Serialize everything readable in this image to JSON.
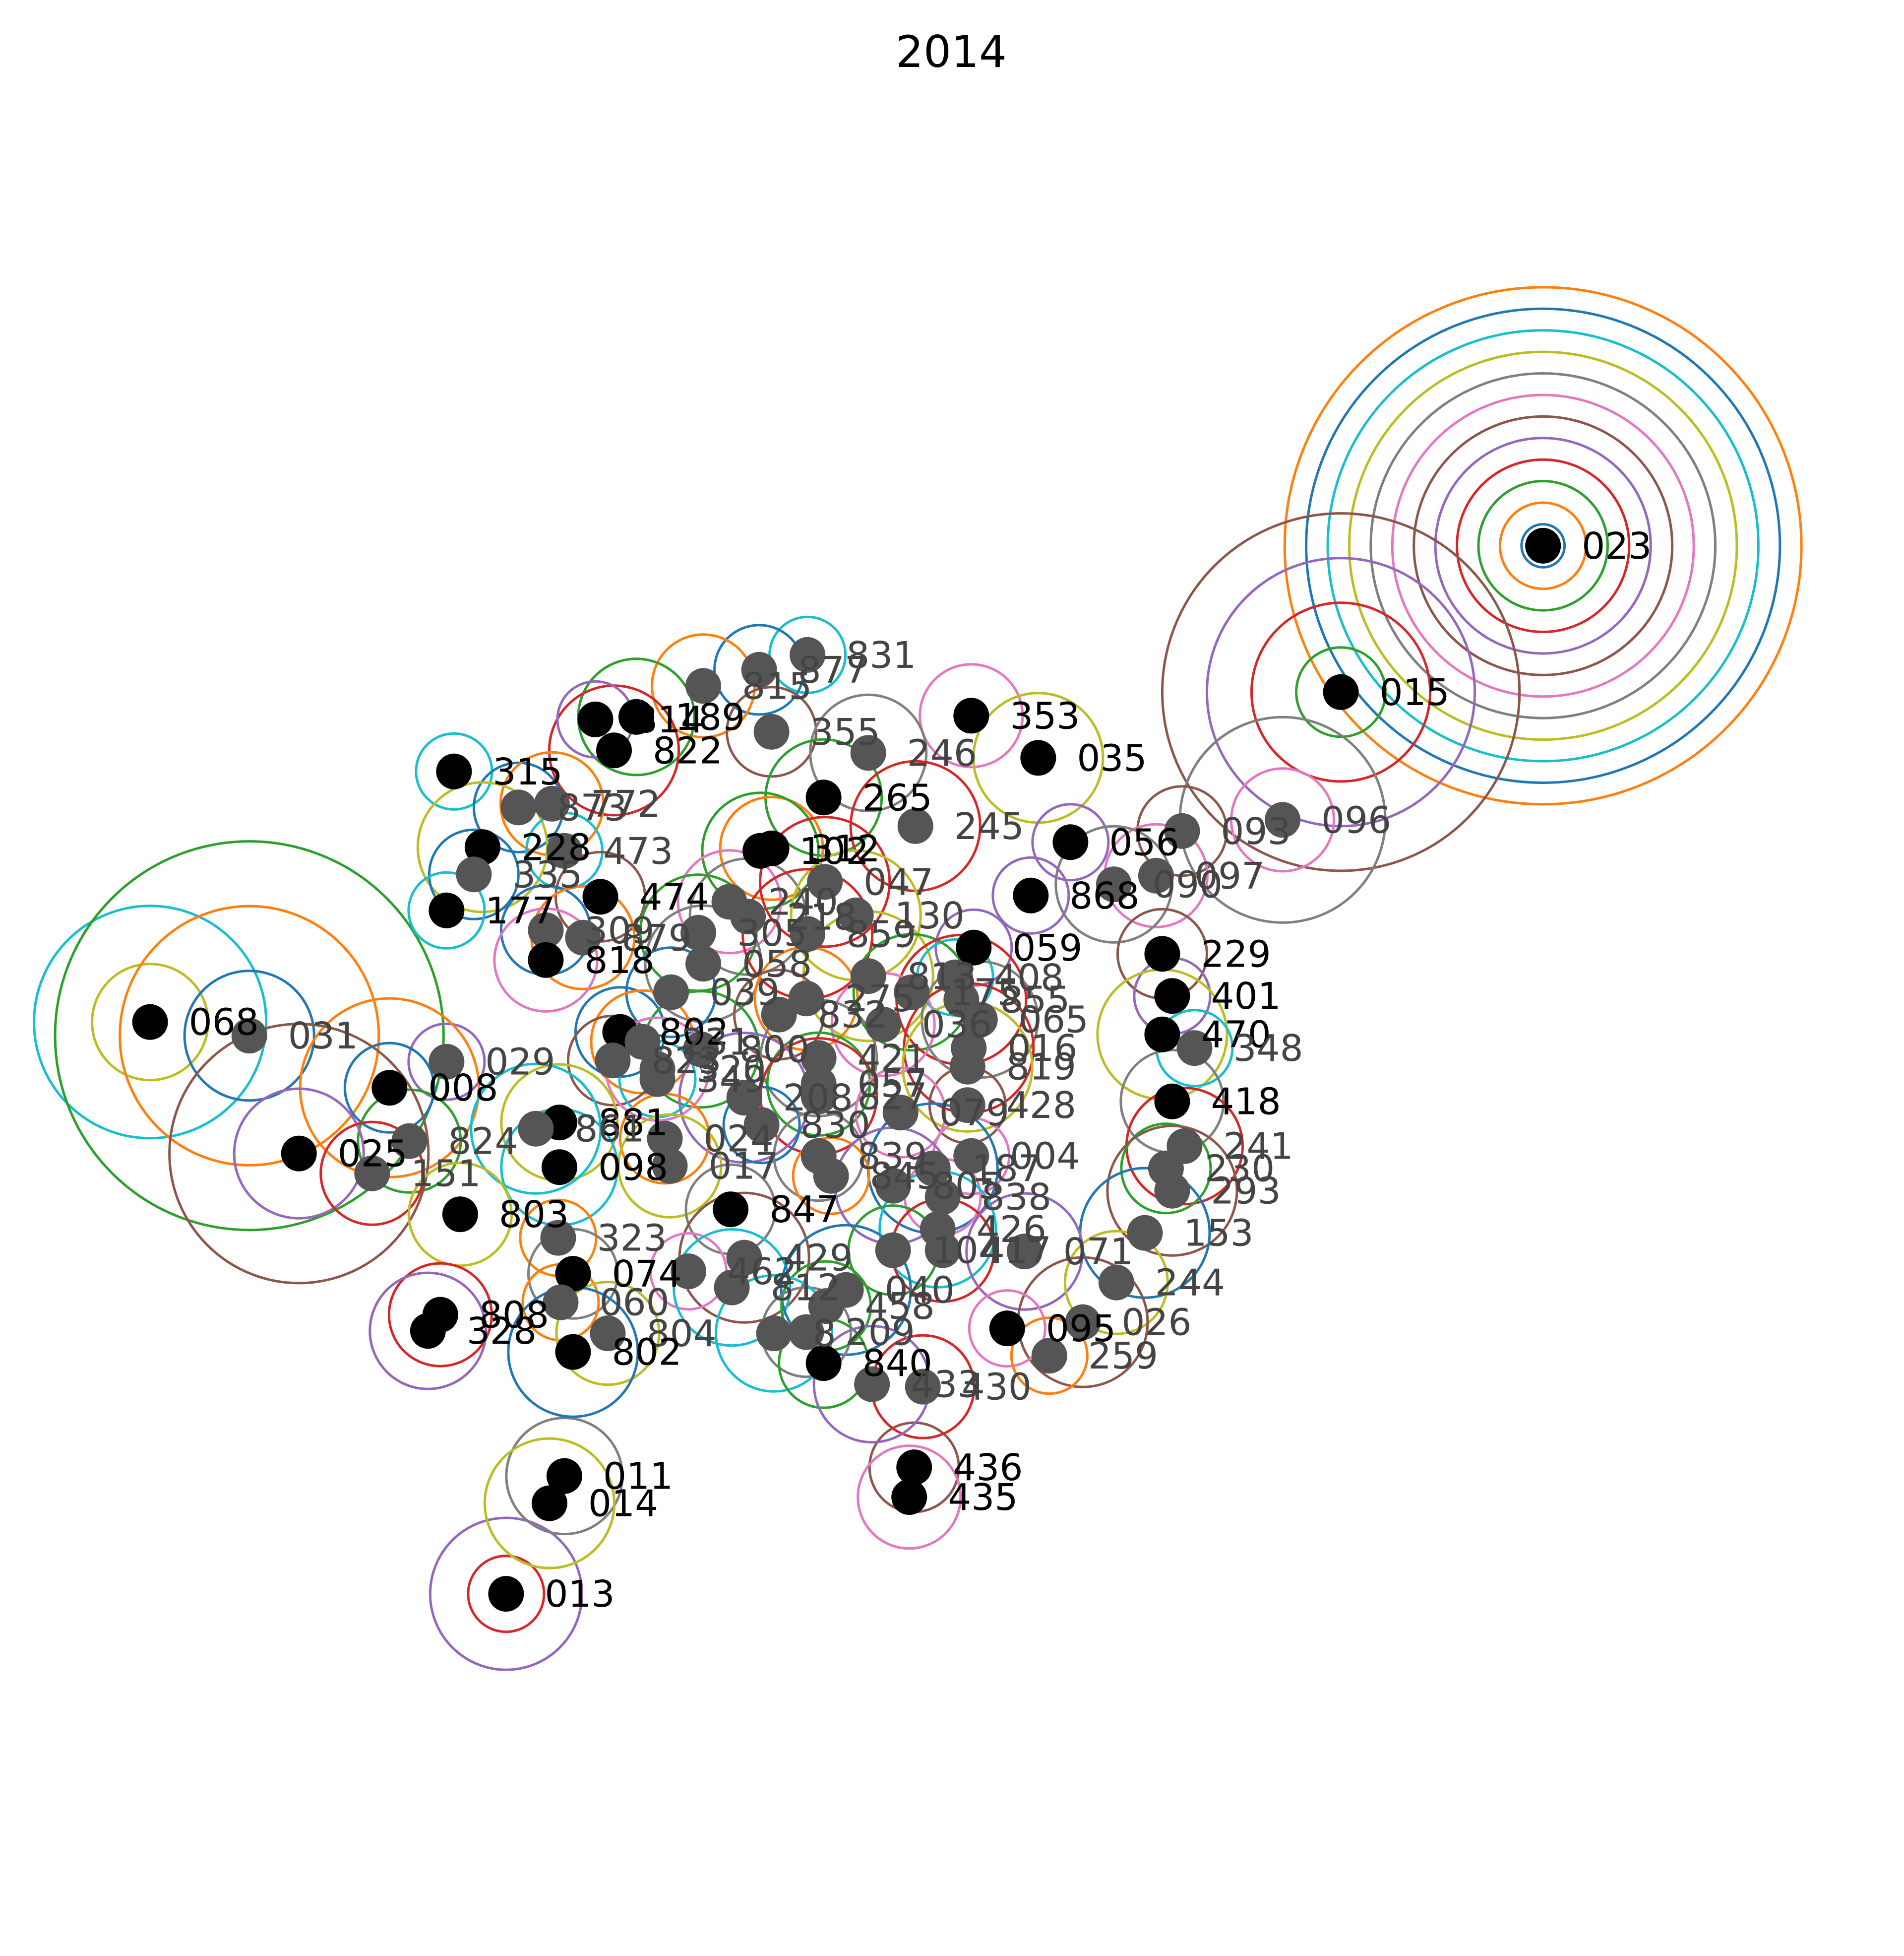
{
  "chart_data": {
    "type": "scatter",
    "title": "2014",
    "xlabel": "",
    "ylabel": "",
    "axes_visible": false,
    "grid": false,
    "legend": "none",
    "xlim": [
      0,
      1535
    ],
    "ylim": [
      1577,
      0
    ],
    "marker_colors": {
      "primary": "#000000",
      "secondary": "#555555"
    },
    "contour_colors": [
      "#1f77b4",
      "#ff7f0e",
      "#2ca02c",
      "#d62728",
      "#9467bd",
      "#8c564b",
      "#e377c2",
      "#7f7f7f",
      "#bcbd22",
      "#17becf"
    ],
    "points": [
      {
        "label": "023",
        "x": 1244,
        "y": 440,
        "shade": "primary",
        "rings": 12
      },
      {
        "label": "015",
        "x": 1081,
        "y": 558,
        "shade": "primary",
        "rings": 4
      },
      {
        "label": "096",
        "x": 1034,
        "y": 661,
        "shade": "secondary",
        "rings": 2
      },
      {
        "label": "068",
        "x": 121,
        "y": 824,
        "shade": "primary",
        "rings": 2
      },
      {
        "label": "031",
        "x": 201,
        "y": 835,
        "shade": "secondary",
        "rings": 3
      },
      {
        "label": "013",
        "x": 408,
        "y": 1285,
        "shade": "primary",
        "rings": 2
      },
      {
        "label": "436",
        "x": 737,
        "y": 1183,
        "shade": "primary",
        "rings": 1
      },
      {
        "label": "435",
        "x": 733,
        "y": 1207,
        "shade": "primary",
        "rings": 1
      },
      {
        "label": "011",
        "x": 455,
        "y": 1190,
        "shade": "primary",
        "rings": 1
      },
      {
        "label": "014",
        "x": 443,
        "y": 1212,
        "shade": "primary",
        "rings": 1
      },
      {
        "label": "831",
        "x": 651,
        "y": 528,
        "shade": "secondary",
        "rings": 1
      },
      {
        "label": "877",
        "x": 612,
        "y": 540,
        "shade": "secondary",
        "rings": 1
      },
      {
        "label": "815",
        "x": 567,
        "y": 553,
        "shade": "secondary",
        "rings": 1
      },
      {
        "label": "189",
        "x": 513,
        "y": 578,
        "shade": "primary",
        "rings": 1
      },
      {
        "label": "822",
        "x": 495,
        "y": 605,
        "shade": "primary",
        "rings": 1
      },
      {
        "label": "814",
        "x": 480,
        "y": 580,
        "shade": "primary",
        "rings": 1
      },
      {
        "label": "355",
        "x": 622,
        "y": 590,
        "shade": "secondary",
        "rings": 1
      },
      {
        "label": "353",
        "x": 783,
        "y": 577,
        "shade": "primary",
        "rings": 1
      },
      {
        "label": "246",
        "x": 700,
        "y": 607,
        "shade": "secondary",
        "rings": 1
      },
      {
        "label": "035",
        "x": 837,
        "y": 611,
        "shade": "primary",
        "rings": 1
      },
      {
        "label": "315",
        "x": 366,
        "y": 622,
        "shade": "primary",
        "rings": 1
      },
      {
        "label": "873",
        "x": 418,
        "y": 651,
        "shade": "secondary",
        "rings": 1
      },
      {
        "label": "772",
        "x": 445,
        "y": 648,
        "shade": "secondary",
        "rings": 1
      },
      {
        "label": "265",
        "x": 664,
        "y": 643,
        "shade": "primary",
        "rings": 1
      },
      {
        "label": "245",
        "x": 738,
        "y": 666,
        "shade": "secondary",
        "rings": 1
      },
      {
        "label": "056",
        "x": 863,
        "y": 679,
        "shade": "primary",
        "rings": 1
      },
      {
        "label": "093",
        "x": 953,
        "y": 670,
        "shade": "secondary",
        "rings": 1
      },
      {
        "label": "097",
        "x": 932,
        "y": 706,
        "shade": "secondary",
        "rings": 1
      },
      {
        "label": "090",
        "x": 898,
        "y": 713,
        "shade": "secondary",
        "rings": 1
      },
      {
        "label": "228",
        "x": 389,
        "y": 683,
        "shade": "primary",
        "rings": 1
      },
      {
        "label": "473",
        "x": 455,
        "y": 686,
        "shade": "secondary",
        "rings": 1
      },
      {
        "label": "335",
        "x": 382,
        "y": 705,
        "shade": "secondary",
        "rings": 1
      },
      {
        "label": "312",
        "x": 622,
        "y": 684,
        "shade": "primary",
        "rings": 1
      },
      {
        "label": "102",
        "x": 613,
        "y": 686,
        "shade": "primary",
        "rings": 1
      },
      {
        "label": "047",
        "x": 665,
        "y": 711,
        "shade": "secondary",
        "rings": 1
      },
      {
        "label": "868",
        "x": 831,
        "y": 722,
        "shade": "primary",
        "rings": 1
      },
      {
        "label": "474",
        "x": 484,
        "y": 723,
        "shade": "primary",
        "rings": 1
      },
      {
        "label": "240",
        "x": 588,
        "y": 727,
        "shade": "secondary",
        "rings": 1
      },
      {
        "label": "218",
        "x": 603,
        "y": 739,
        "shade": "secondary",
        "rings": 1
      },
      {
        "label": "130",
        "x": 690,
        "y": 738,
        "shade": "secondary",
        "rings": 1
      },
      {
        "label": "177",
        "x": 360,
        "y": 734,
        "shade": "primary",
        "rings": 1
      },
      {
        "label": "309",
        "x": 440,
        "y": 750,
        "shade": "secondary",
        "rings": 1
      },
      {
        "label": "879",
        "x": 470,
        "y": 756,
        "shade": "secondary",
        "rings": 1
      },
      {
        "label": "305",
        "x": 563,
        "y": 752,
        "shade": "secondary",
        "rings": 1
      },
      {
        "label": "859",
        "x": 651,
        "y": 753,
        "shade": "secondary",
        "rings": 1
      },
      {
        "label": "059",
        "x": 785,
        "y": 764,
        "shade": "primary",
        "rings": 1
      },
      {
        "label": "229",
        "x": 937,
        "y": 769,
        "shade": "primary",
        "rings": 1
      },
      {
        "label": "818",
        "x": 440,
        "y": 774,
        "shade": "primary",
        "rings": 1
      },
      {
        "label": "058",
        "x": 567,
        "y": 777,
        "shade": "secondary",
        "rings": 1
      },
      {
        "label": "813",
        "x": 700,
        "y": 787,
        "shade": "secondary",
        "rings": 1
      },
      {
        "label": "408",
        "x": 770,
        "y": 788,
        "shade": "secondary",
        "rings": 1
      },
      {
        "label": "039",
        "x": 541,
        "y": 800,
        "shade": "secondary",
        "rings": 1
      },
      {
        "label": "275",
        "x": 650,
        "y": 805,
        "shade": "secondary",
        "rings": 1
      },
      {
        "label": "175",
        "x": 735,
        "y": 800,
        "shade": "secondary",
        "rings": 1
      },
      {
        "label": "855",
        "x": 775,
        "y": 806,
        "shade": "secondary",
        "rings": 1
      },
      {
        "label": "401",
        "x": 945,
        "y": 803,
        "shade": "primary",
        "rings": 1
      },
      {
        "label": "832",
        "x": 628,
        "y": 818,
        "shade": "secondary",
        "rings": 1
      },
      {
        "label": "036",
        "x": 712,
        "y": 826,
        "shade": "secondary",
        "rings": 1
      },
      {
        "label": "065",
        "x": 790,
        "y": 822,
        "shade": "secondary",
        "rings": 1
      },
      {
        "label": "470",
        "x": 937,
        "y": 834,
        "shade": "primary",
        "rings": 1
      },
      {
        "label": "348",
        "x": 963,
        "y": 845,
        "shade": "secondary",
        "rings": 1
      },
      {
        "label": "802",
        "x": 500,
        "y": 832,
        "shade": "primary",
        "rings": 1
      },
      {
        "label": "231",
        "x": 518,
        "y": 840,
        "shade": "secondary",
        "rings": 1
      },
      {
        "label": "800",
        "x": 565,
        "y": 846,
        "shade": "secondary",
        "rings": 1
      },
      {
        "label": "016",
        "x": 781,
        "y": 845,
        "shade": "secondary",
        "rings": 1
      },
      {
        "label": "029",
        "x": 360,
        "y": 856,
        "shade": "secondary",
        "rings": 1
      },
      {
        "label": "823",
        "x": 494,
        "y": 855,
        "shade": "secondary",
        "rings": 1
      },
      {
        "label": "320",
        "x": 530,
        "y": 862,
        "shade": "secondary",
        "rings": 1
      },
      {
        "label": "421",
        "x": 660,
        "y": 853,
        "shade": "secondary",
        "rings": 1
      },
      {
        "label": "819",
        "x": 780,
        "y": 860,
        "shade": "secondary",
        "rings": 1
      },
      {
        "label": "349",
        "x": 530,
        "y": 870,
        "shade": "secondary",
        "rings": 1
      },
      {
        "label": "008",
        "x": 314,
        "y": 877,
        "shade": "primary",
        "rings": 2
      },
      {
        "label": "057",
        "x": 660,
        "y": 874,
        "shade": "secondary",
        "rings": 1
      },
      {
        "label": "827",
        "x": 660,
        "y": 884,
        "shade": "secondary",
        "rings": 1
      },
      {
        "label": "208",
        "x": 600,
        "y": 885,
        "shade": "secondary",
        "rings": 1
      },
      {
        "label": "428",
        "x": 780,
        "y": 891,
        "shade": "secondary",
        "rings": 1
      },
      {
        "label": "079",
        "x": 726,
        "y": 897,
        "shade": "secondary",
        "rings": 1
      },
      {
        "label": "418",
        "x": 945,
        "y": 888,
        "shade": "primary",
        "rings": 1
      },
      {
        "label": "881",
        "x": 451,
        "y": 905,
        "shade": "primary",
        "rings": 1
      },
      {
        "label": "861",
        "x": 432,
        "y": 910,
        "shade": "secondary",
        "rings": 1
      },
      {
        "label": "830",
        "x": 614,
        "y": 907,
        "shade": "secondary",
        "rings": 1
      },
      {
        "label": "024",
        "x": 536,
        "y": 918,
        "shade": "secondary",
        "rings": 1
      },
      {
        "label": "824",
        "x": 330,
        "y": 920,
        "shade": "secondary",
        "rings": 1
      },
      {
        "label": "241",
        "x": 955,
        "y": 924,
        "shade": "secondary",
        "rings": 1
      },
      {
        "label": "025",
        "x": 241,
        "y": 930,
        "shade": "primary",
        "rings": 2
      },
      {
        "label": "004",
        "x": 783,
        "y": 932,
        "shade": "secondary",
        "rings": 1
      },
      {
        "label": "839",
        "x": 660,
        "y": 932,
        "shade": "secondary",
        "rings": 1
      },
      {
        "label": "017",
        "x": 540,
        "y": 940,
        "shade": "secondary",
        "rings": 1
      },
      {
        "label": "098",
        "x": 451,
        "y": 941,
        "shade": "primary",
        "rings": 1
      },
      {
        "label": "187",
        "x": 752,
        "y": 942,
        "shade": "secondary",
        "rings": 1
      },
      {
        "label": "845",
        "x": 670,
        "y": 948,
        "shade": "secondary",
        "rings": 1
      },
      {
        "label": "230",
        "x": 940,
        "y": 942,
        "shade": "secondary",
        "rings": 1
      },
      {
        "label": "151",
        "x": 300,
        "y": 946,
        "shade": "secondary",
        "rings": 1
      },
      {
        "label": "805",
        "x": 720,
        "y": 956,
        "shade": "secondary",
        "rings": 1
      },
      {
        "label": "293",
        "x": 945,
        "y": 960,
        "shade": "secondary",
        "rings": 1
      },
      {
        "label": "838",
        "x": 760,
        "y": 965,
        "shade": "secondary",
        "rings": 1
      },
      {
        "label": "847",
        "x": 589,
        "y": 975,
        "shade": "primary",
        "rings": 1
      },
      {
        "label": "803",
        "x": 371,
        "y": 979,
        "shade": "primary",
        "rings": 1
      },
      {
        "label": "426",
        "x": 756,
        "y": 991,
        "shade": "secondary",
        "rings": 1
      },
      {
        "label": "153",
        "x": 923,
        "y": 994,
        "shade": "secondary",
        "rings": 1
      },
      {
        "label": "323",
        "x": 450,
        "y": 998,
        "shade": "secondary",
        "rings": 1
      },
      {
        "label": "104",
        "x": 720,
        "y": 1008,
        "shade": "secondary",
        "rings": 1
      },
      {
        "label": "417",
        "x": 760,
        "y": 1008,
        "shade": "secondary",
        "rings": 1
      },
      {
        "label": "071",
        "x": 826,
        "y": 1009,
        "shade": "secondary",
        "rings": 1
      },
      {
        "label": "429",
        "x": 600,
        "y": 1014,
        "shade": "secondary",
        "rings": 1
      },
      {
        "label": "462",
        "x": 555,
        "y": 1025,
        "shade": "secondary",
        "rings": 1
      },
      {
        "label": "074",
        "x": 462,
        "y": 1027,
        "shade": "primary",
        "rings": 1
      },
      {
        "label": "244",
        "x": 900,
        "y": 1034,
        "shade": "secondary",
        "rings": 1
      },
      {
        "label": "812",
        "x": 590,
        "y": 1038,
        "shade": "secondary",
        "rings": 1
      },
      {
        "label": "040",
        "x": 682,
        "y": 1040,
        "shade": "secondary",
        "rings": 1
      },
      {
        "label": "060",
        "x": 452,
        "y": 1050,
        "shade": "secondary",
        "rings": 1
      },
      {
        "label": "458",
        "x": 666,
        "y": 1053,
        "shade": "secondary",
        "rings": 1
      },
      {
        "label": "808",
        "x": 355,
        "y": 1060,
        "shade": "primary",
        "rings": 1
      },
      {
        "label": "328",
        "x": 345,
        "y": 1073,
        "shade": "primary",
        "rings": 1
      },
      {
        "label": "026",
        "x": 873,
        "y": 1066,
        "shade": "secondary",
        "rings": 1
      },
      {
        "label": "095",
        "x": 812,
        "y": 1071,
        "shade": "primary",
        "rings": 1
      },
      {
        "label": "209",
        "x": 650,
        "y": 1074,
        "shade": "secondary",
        "rings": 1
      },
      {
        "label": "804",
        "x": 490,
        "y": 1075,
        "shade": "secondary",
        "rings": 1
      },
      {
        "label": "8",
        "x": 624,
        "y": 1075,
        "shade": "secondary",
        "rings": 1
      },
      {
        "label": "802",
        "x": 462,
        "y": 1090,
        "shade": "primary",
        "rings": 1
      },
      {
        "label": "259",
        "x": 846,
        "y": 1093,
        "shade": "secondary",
        "rings": 1
      },
      {
        "label": "840",
        "x": 664,
        "y": 1099,
        "shade": "primary",
        "rings": 1
      },
      {
        "label": "430",
        "x": 744,
        "y": 1118,
        "shade": "secondary",
        "rings": 1
      },
      {
        "label": "433",
        "x": 703,
        "y": 1116,
        "shade": "secondary",
        "rings": 1
      }
    ]
  }
}
